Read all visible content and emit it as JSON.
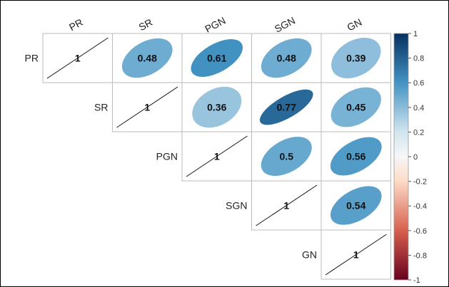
{
  "chart_data": {
    "type": "heatmap",
    "variables": [
      "PR",
      "SR",
      "PGN",
      "SGN",
      "GN"
    ],
    "matrix": [
      [
        1,
        0.48,
        0.61,
        0.48,
        0.39
      ],
      [
        null,
        1,
        0.36,
        0.77,
        0.45
      ],
      [
        null,
        null,
        1,
        0.5,
        0.56
      ],
      [
        null,
        null,
        null,
        1,
        0.54
      ],
      [
        null,
        null,
        null,
        null,
        1
      ]
    ],
    "value_labels": [
      [
        "1",
        "0.48",
        "0.61",
        "0.48",
        "0.39"
      ],
      [
        null,
        "1",
        "0.36",
        "0.77",
        "0.45"
      ],
      [
        null,
        null,
        "1",
        "0.5",
        "0.56"
      ],
      [
        null,
        null,
        null,
        "1",
        "0.54"
      ],
      [
        null,
        null,
        null,
        null,
        "1"
      ]
    ],
    "colorbar": {
      "range": [
        -1,
        1
      ],
      "ticks": [
        "1",
        "0.8",
        "0.6",
        "0.4",
        "0.2",
        "0",
        "-0.2",
        "-0.4",
        "-0.6",
        "-0.8",
        "-1"
      ],
      "tick_values": [
        1,
        0.8,
        0.6,
        0.4,
        0.2,
        0,
        -0.2,
        -0.4,
        -0.6,
        -0.8,
        -1
      ],
      "colors": {
        "negative_strong": "#67001f",
        "negative_mid": "#d6604d",
        "neutral": "#f7f7f7",
        "positive_mid": "#4393c3",
        "positive_strong": "#053061"
      }
    },
    "shape": "ellipse",
    "layout": "upper-triangle",
    "diagonal": "line",
    "legend_position": "right"
  }
}
